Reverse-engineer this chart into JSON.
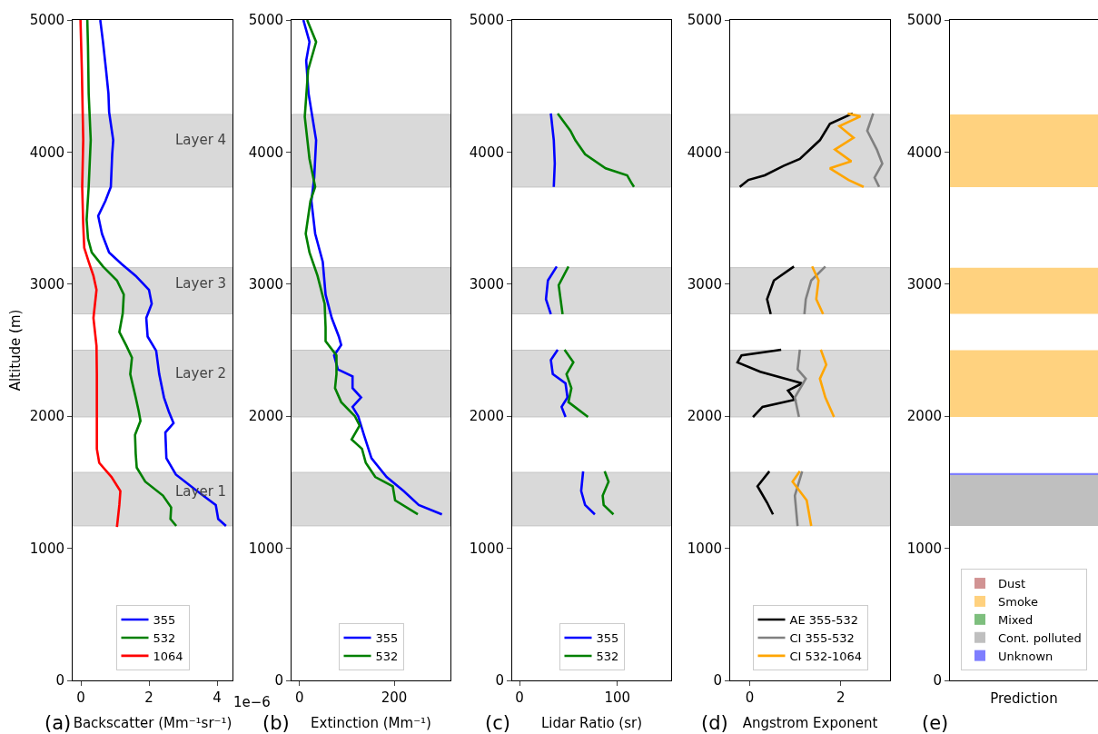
{
  "chart_data": [
    {
      "type": "line",
      "orientation": "horizontal",
      "xlabel": "Backscatter (Mm⁻¹sr⁻¹)",
      "ylabel": "Altitude (m)",
      "xlim": [
        -0.24,
        4.45
      ],
      "xticks": [
        0,
        2,
        4
      ],
      "ylim": [
        0,
        5000
      ],
      "yticks": [
        0,
        1000,
        2000,
        3000,
        4000,
        5000
      ],
      "legend": "bottom",
      "annotations": [
        "(a)",
        "1e−6"
      ],
      "bands": [
        {
          "axis": "y",
          "from": 1170,
          "to": 1575,
          "label": "Layer 1",
          "color": "#d9d9d9"
        },
        {
          "axis": "y",
          "from": 1995,
          "to": 2500,
          "label": "Layer 2",
          "color": "#d9d9d9"
        },
        {
          "axis": "y",
          "from": 2775,
          "to": 3125,
          "label": "Layer 3",
          "color": "#d9d9d9"
        },
        {
          "axis": "y",
          "from": 3735,
          "to": 4285,
          "label": "Layer 4",
          "color": "#d9d9d9"
        }
      ],
      "series": [
        {
          "name": "355",
          "color": "#0000ff",
          "x": [
            5000,
            4834,
            4621,
            4444,
            4303,
            4090,
            3984,
            3736,
            3630,
            3516,
            3382,
            3240,
            3152,
            3063,
            2957,
            2851,
            2744,
            2603,
            2496,
            2319,
            2142,
            2036,
            1948,
            1877,
            1682,
            1558,
            1434,
            1328,
            1222,
            1169
          ],
          "values": [
            0.57,
            0.65,
            0.74,
            0.81,
            0.83,
            0.95,
            0.92,
            0.88,
            0.72,
            0.51,
            0.62,
            0.83,
            1.2,
            1.61,
            2.0,
            2.08,
            1.92,
            1.96,
            2.21,
            2.3,
            2.44,
            2.58,
            2.72,
            2.48,
            2.51,
            2.79,
            3.41,
            3.96,
            4.03,
            4.26
          ]
        },
        {
          "name": "532",
          "color": "#008000",
          "x": [
            5000,
            4799,
            4444,
            4090,
            3736,
            3488,
            3346,
            3240,
            3134,
            3028,
            2921,
            2780,
            2638,
            2532,
            2443,
            2319,
            2142,
            2036,
            1965,
            1859,
            1717,
            1611,
            1505,
            1399,
            1310,
            1222,
            1169
          ],
          "values": [
            0.19,
            0.21,
            0.23,
            0.29,
            0.23,
            0.17,
            0.21,
            0.32,
            0.65,
            1.06,
            1.26,
            1.23,
            1.13,
            1.34,
            1.5,
            1.45,
            1.61,
            1.7,
            1.75,
            1.59,
            1.61,
            1.64,
            1.89,
            2.41,
            2.65,
            2.63,
            2.8
          ]
        },
        {
          "name": "1064",
          "color": "#ff0000",
          "x": [
            5000,
            4621,
            4090,
            3736,
            3452,
            3275,
            3169,
            3063,
            2957,
            2744,
            2532,
            2319,
            1965,
            1753,
            1647,
            1540,
            1434,
            1328,
            1162
          ],
          "values": [
            -0.01,
            0.03,
            0.07,
            0.04,
            0.07,
            0.1,
            0.23,
            0.37,
            0.46,
            0.37,
            0.46,
            0.47,
            0.47,
            0.47,
            0.54,
            0.9,
            1.16,
            1.13,
            1.06
          ]
        }
      ]
    },
    {
      "type": "line",
      "orientation": "horizontal",
      "xlabel": "Extinction (Mm⁻¹)",
      "xlim": [
        -17,
        319
      ],
      "xticks": [
        0,
        200
      ],
      "ylim": [
        0,
        5000
      ],
      "yticks": [
        0,
        1000,
        2000,
        3000,
        4000,
        5000
      ],
      "legend": "bottom",
      "annotations": [
        "(b)"
      ],
      "bands": [
        {
          "axis": "y",
          "from": 1170,
          "to": 1575,
          "color": "#d9d9d9"
        },
        {
          "axis": "y",
          "from": 1995,
          "to": 2500,
          "color": "#d9d9d9"
        },
        {
          "axis": "y",
          "from": 2775,
          "to": 3125,
          "color": "#d9d9d9"
        },
        {
          "axis": "y",
          "from": 3735,
          "to": 4285,
          "color": "#d9d9d9"
        }
      ],
      "series": [
        {
          "name": "355",
          "color": "#0000ff",
          "x": [
            5000,
            4834,
            4692,
            4444,
            4090,
            3807,
            3630,
            3382,
            3169,
            2921,
            2744,
            2603,
            2539,
            2461,
            2355,
            2301,
            2213,
            2142,
            2071,
            2000,
            1859,
            1682,
            1540,
            1434,
            1328,
            1257
          ],
          "values": [
            8,
            21,
            14,
            19,
            35,
            31,
            25,
            33,
            49,
            55,
            68,
            83,
            88,
            73,
            81,
            112,
            112,
            130,
            112,
            124,
            136,
            152,
            184,
            220,
            252,
            301
          ]
        },
        {
          "name": "532",
          "color": "#008000",
          "x": [
            5000,
            4834,
            4621,
            4267,
            3948,
            3736,
            3630,
            3382,
            3240,
            3063,
            2851,
            2674,
            2568,
            2461,
            2319,
            2213,
            2107,
            2000,
            1930,
            1824,
            1753,
            1647,
            1540,
            1470,
            1363,
            1257
          ],
          "values": [
            16,
            35,
            18,
            11,
            21,
            33,
            23,
            13,
            21,
            38,
            53,
            55,
            55,
            78,
            78,
            75,
            88,
            117,
            127,
            110,
            132,
            140,
            160,
            197,
            202,
            250
          ]
        }
      ]
    },
    {
      "type": "line",
      "orientation": "horizontal",
      "xlabel": "Lidar Ratio (sr)",
      "xlim": [
        -7.5,
        155
      ],
      "xticks": [
        0,
        100
      ],
      "ylim": [
        0,
        5000
      ],
      "yticks": [
        0,
        1000,
        2000,
        3000,
        4000,
        5000
      ],
      "legend": "bottom",
      "annotations": [
        "(c)"
      ],
      "bands": [
        {
          "axis": "y",
          "from": 1170,
          "to": 1575,
          "color": "#d9d9d9"
        },
        {
          "axis": "y",
          "from": 1995,
          "to": 2500,
          "color": "#d9d9d9"
        },
        {
          "axis": "y",
          "from": 2775,
          "to": 3125,
          "color": "#d9d9d9"
        },
        {
          "axis": "y",
          "from": 3735,
          "to": 4285,
          "color": "#d9d9d9"
        }
      ],
      "series": [
        {
          "name": "355",
          "color": "#0000ff",
          "x": [
            4292,
            4090,
            3913,
            3736,
            3400,
            3134,
            3028,
            2886,
            2773,
            2650,
            2504,
            2426,
            2319,
            2249,
            2142,
            2071,
            1994,
            1800,
            1583,
            1434,
            1328,
            1257
          ],
          "values": [
            32,
            35,
            36,
            35,
            null,
            38,
            29,
            27,
            32,
            null,
            39,
            32,
            34,
            47,
            49,
            43,
            47,
            null,
            65,
            63,
            67,
            77
          ]
        },
        {
          "name": "532",
          "color": "#008000",
          "x": [
            4292,
            4161,
            4090,
            3984,
            3877,
            3824,
            3771,
            3736,
            3400,
            3134,
            2992,
            2773,
            2650,
            2504,
            2408,
            2319,
            2213,
            2107,
            1994,
            1800,
            1583,
            1505,
            1399,
            1328,
            1257
          ],
          "values": [
            39,
            52,
            57,
            67,
            88,
            110,
            114,
            117,
            null,
            50,
            40,
            44,
            null,
            46,
            55,
            48,
            53,
            50,
            70,
            null,
            87,
            91,
            85,
            86,
            96
          ]
        }
      ]
    },
    {
      "type": "line",
      "orientation": "horizontal",
      "xlabel": "Angstrom Exponent",
      "xlim": [
        -0.43,
        3.08
      ],
      "xticks": [
        0,
        2
      ],
      "ylim": [
        0,
        5000
      ],
      "yticks": [
        0,
        1000,
        2000,
        3000,
        4000,
        5000
      ],
      "legend": "bottom",
      "annotations": [
        "(d)"
      ],
      "bands": [
        {
          "axis": "y",
          "from": 1170,
          "to": 1575,
          "color": "#d9d9d9"
        },
        {
          "axis": "y",
          "from": 1995,
          "to": 2500,
          "color": "#d9d9d9"
        },
        {
          "axis": "y",
          "from": 2775,
          "to": 3125,
          "color": "#d9d9d9"
        },
        {
          "axis": "y",
          "from": 3735,
          "to": 4285,
          "color": "#d9d9d9"
        }
      ],
      "series": [
        {
          "name": "AE 355-532",
          "color": "#000000",
          "x": [
            4292,
            4214,
            4090,
            3948,
            3895,
            3824,
            3789,
            3736,
            3400,
            3134,
            3028,
            2886,
            2773,
            2650,
            2504,
            2461,
            2408,
            2337,
            2249,
            2195,
            2125,
            2071,
            1994,
            1800,
            1583,
            1470,
            1346,
            1257
          ],
          "values": [
            2.26,
            1.76,
            1.54,
            1.1,
            0.74,
            0.33,
            -0.03,
            -0.22,
            null,
            0.97,
            0.53,
            0.38,
            0.46,
            null,
            0.69,
            -0.18,
            -0.27,
            0.23,
            1.15,
            0.84,
            0.99,
            0.28,
            0.07,
            null,
            0.43,
            0.17,
            0.38,
            0.51
          ]
        },
        {
          "name": "CI 355-532",
          "color": "#808080",
          "x": [
            4292,
            4161,
            4019,
            3913,
            3807,
            3736,
            3400,
            3134,
            3028,
            2886,
            2773,
            2650,
            2504,
            2355,
            2284,
            2142,
            1994,
            1800,
            1583,
            1399,
            1169
          ],
          "values": [
            2.71,
            2.58,
            2.79,
            2.91,
            2.74,
            2.84,
            null,
            1.66,
            1.35,
            1.23,
            1.2,
            null,
            1.1,
            1.05,
            1.23,
            0.99,
            1.08,
            null,
            1.15,
            0.99,
            1.05
          ]
        },
        {
          "name": "CI 532-1064",
          "color": "#ffa500",
          "x": [
            4292,
            4270,
            4196,
            4108,
            4019,
            3930,
            3877,
            3789,
            3736,
            3400,
            3134,
            3028,
            2886,
            2773,
            2650,
            2504,
            2390,
            2284,
            2142,
            1994,
            1800,
            1583,
            1505,
            1363,
            1169
          ],
          "values": [
            2.15,
            2.43,
            1.97,
            2.28,
            1.87,
            2.23,
            1.76,
            2.17,
            2.5,
            null,
            1.37,
            1.51,
            1.46,
            1.61,
            null,
            1.56,
            1.68,
            1.54,
            1.66,
            1.85,
            null,
            1.1,
            0.94,
            1.25,
            1.35
          ]
        }
      ]
    },
    {
      "type": "bar",
      "categories": [
        null
      ],
      "xlabel": "Prediction",
      "ylim": [
        0,
        5000
      ],
      "yticks": [
        0,
        1000,
        2000,
        3000,
        4000,
        5000
      ],
      "tick_labels": "y",
      "legend": "bottom",
      "annotations": [
        "(e)"
      ],
      "series": [
        {
          "name": "Dust",
          "color": "#a52a2a",
          "values": [
            null
          ]
        },
        {
          "name": "Smoke",
          "color": "#ffa500",
          "base": [
            1995
          ],
          "values": [
            505
          ]
        },
        {
          "color": "#ffa500",
          "base": [
            2775
          ],
          "values": [
            350
          ]
        },
        {
          "color": "#ffa500",
          "base": [
            3735
          ],
          "values": [
            550
          ]
        },
        {
          "name": "Mixed",
          "color": "#008000",
          "values": [
            null
          ]
        },
        {
          "name": "Cont. polluted",
          "color": "#808080",
          "base": [
            1170
          ],
          "values": [
            385
          ]
        },
        {
          "name": "Unknown",
          "color": "#0000ff",
          "base": [
            1555
          ],
          "values": [
            15
          ]
        }
      ]
    }
  ]
}
